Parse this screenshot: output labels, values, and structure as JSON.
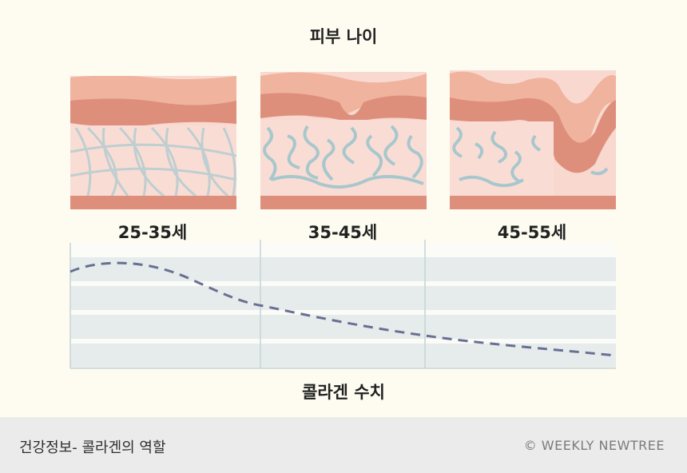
{
  "title": "피부 나이",
  "stages": [
    {
      "label": "25-35세"
    },
    {
      "label": "35-45세"
    },
    {
      "label": "45-55세"
    }
  ],
  "chart": {
    "label": "콜라겐 수치",
    "line_color": "#6a6f93",
    "band_color": "#e6eceb"
  },
  "footer": {
    "left": "건강정보-  콜라겐의 역할",
    "right": "© WEEKLY NEWTREE"
  },
  "colors": {
    "skin_top": "#f0b39d",
    "skin_dark": "#de8f7c",
    "dermis": "#f6cfc4",
    "fiber": "#a8c7cc",
    "background": "#fefcf1"
  }
}
